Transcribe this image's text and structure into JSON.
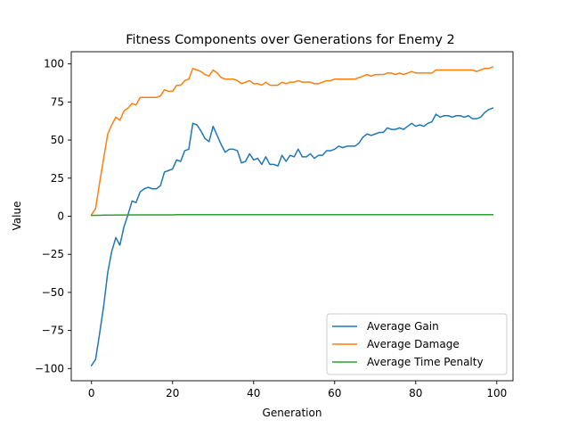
{
  "chart_data": {
    "type": "line",
    "title": "Fitness Components over Generations for Enemy 2",
    "xlabel": "Generation",
    "ylabel": "Value",
    "xlim": [
      -5,
      104
    ],
    "ylim": [
      -108,
      108
    ],
    "xticks": [
      0,
      20,
      40,
      60,
      80,
      100
    ],
    "yticks": [
      -100,
      -75,
      -50,
      -25,
      0,
      25,
      50,
      75,
      100
    ],
    "grid": false,
    "legend_position": "lower right",
    "series": [
      {
        "name": "Average Gain",
        "color": "#1f77b4",
        "values": [
          -98,
          -94,
          -77,
          -59,
          -37,
          -23,
          -14,
          -19,
          -7,
          1,
          10,
          9,
          16,
          18,
          19,
          18,
          18,
          20,
          29,
          30,
          31,
          37,
          36,
          43,
          44,
          61,
          60,
          56,
          51,
          49,
          59,
          53,
          47,
          42,
          44,
          44,
          43,
          35,
          36,
          41,
          37,
          38,
          34,
          39,
          34,
          34,
          33,
          40,
          36,
          40,
          39,
          44,
          39,
          39,
          41,
          38,
          40,
          40,
          43,
          43,
          44,
          46,
          45,
          46,
          46,
          46,
          48,
          52,
          54,
          53,
          54,
          55,
          55,
          58,
          57,
          57,
          58,
          57,
          59,
          61,
          59,
          60,
          59,
          61,
          62,
          67,
          65,
          66,
          66,
          65,
          66,
          66,
          65,
          66,
          64,
          64,
          65,
          68,
          70,
          71
        ]
      },
      {
        "name": "Average Damage",
        "color": "#ff7f0e",
        "values": [
          1,
          5,
          22,
          38,
          54,
          60,
          65,
          63,
          69,
          71,
          74,
          73,
          78,
          78,
          78,
          78,
          78,
          79,
          83,
          82,
          82,
          86,
          86,
          89,
          90,
          97,
          96,
          95,
          93,
          92,
          96,
          94,
          91,
          90,
          90,
          90,
          89,
          87,
          88,
          89,
          87,
          87,
          86,
          88,
          86,
          86,
          86,
          88,
          87,
          88,
          88,
          89,
          88,
          88,
          88,
          87,
          87,
          88,
          89,
          89,
          90,
          90,
          90,
          90,
          90,
          90,
          91,
          92,
          93,
          92,
          93,
          93,
          93,
          94,
          94,
          93,
          94,
          93,
          94,
          95,
          94,
          94,
          94,
          94,
          94,
          96,
          96,
          96,
          96,
          96,
          96,
          96,
          96,
          96,
          96,
          95,
          96,
          97,
          97,
          98
        ]
      },
      {
        "name": "Average Time Penalty",
        "color": "#2ca02c",
        "values": [
          0.5,
          0.6,
          0.6,
          0.7,
          0.7,
          0.7,
          0.8,
          0.8,
          0.8,
          0.8,
          0.9,
          0.9,
          0.9,
          0.9,
          0.9,
          0.9,
          0.9,
          0.9,
          0.9,
          0.9,
          0.9,
          1,
          1,
          1,
          1,
          1,
          1,
          1,
          1,
          1,
          1,
          1,
          1,
          1,
          1,
          1,
          1,
          1,
          1,
          1,
          1,
          1,
          1,
          1,
          1,
          1,
          1,
          1,
          1,
          1,
          1,
          1,
          1,
          1,
          1,
          1,
          1,
          1,
          1,
          1,
          1,
          1,
          1,
          1,
          1,
          1,
          1,
          1,
          1,
          1,
          1,
          1,
          1,
          1,
          1,
          1,
          1,
          1,
          1,
          1,
          1,
          1,
          1,
          1,
          1,
          1,
          1,
          1,
          1,
          1,
          1,
          1,
          1,
          1,
          1,
          1,
          1,
          1,
          1,
          1
        ]
      }
    ]
  }
}
